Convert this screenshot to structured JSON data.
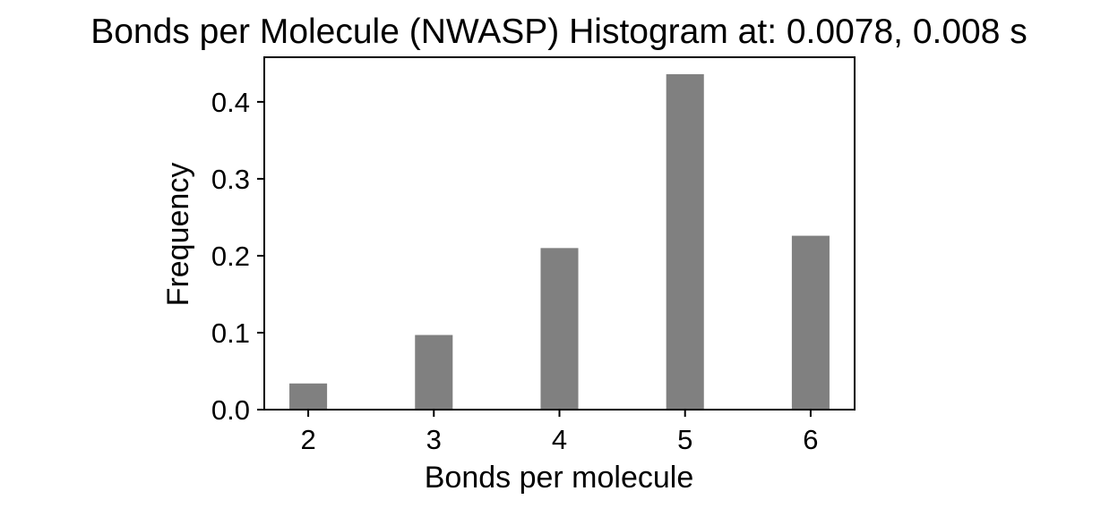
{
  "chart_data": {
    "type": "bar",
    "title": "Bonds per Molecule (NWASP) Histogram at: 0.0078, 0.008 s",
    "xlabel": "Bonds per molecule",
    "ylabel": "Frequency",
    "categories": [
      "2",
      "3",
      "4",
      "5",
      "6"
    ],
    "x": [
      2,
      3,
      4,
      5,
      6
    ],
    "values": [
      0.034,
      0.097,
      0.21,
      0.436,
      0.226
    ],
    "xlim": [
      1.65,
      6.35
    ],
    "ylim": [
      0,
      0.458
    ],
    "yticks": [
      0.0,
      0.1,
      0.2,
      0.3,
      0.4
    ],
    "ytick_labels": [
      "0.0",
      "0.1",
      "0.2",
      "0.3",
      "0.4"
    ],
    "bar_color": "#808080",
    "grid": false,
    "legend": "none"
  }
}
